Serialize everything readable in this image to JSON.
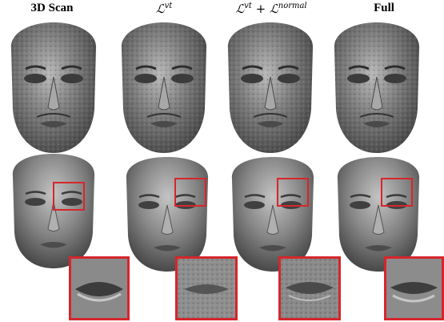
{
  "columns": [
    {
      "id": "scan",
      "label": "3D Scan",
      "style": "bold"
    },
    {
      "id": "vt",
      "label_main": "ℒ",
      "label_sup": "vt",
      "style": "math"
    },
    {
      "id": "vt-normal",
      "label_main": "ℒ",
      "label_sup": "vt",
      "plus": " + ℒ",
      "label_sup2": "normal",
      "style": "math"
    },
    {
      "id": "full",
      "label": "Full",
      "style": "bold"
    }
  ],
  "colors": {
    "highlight": "#d6262b",
    "mesh": "#7a7a7a"
  }
}
